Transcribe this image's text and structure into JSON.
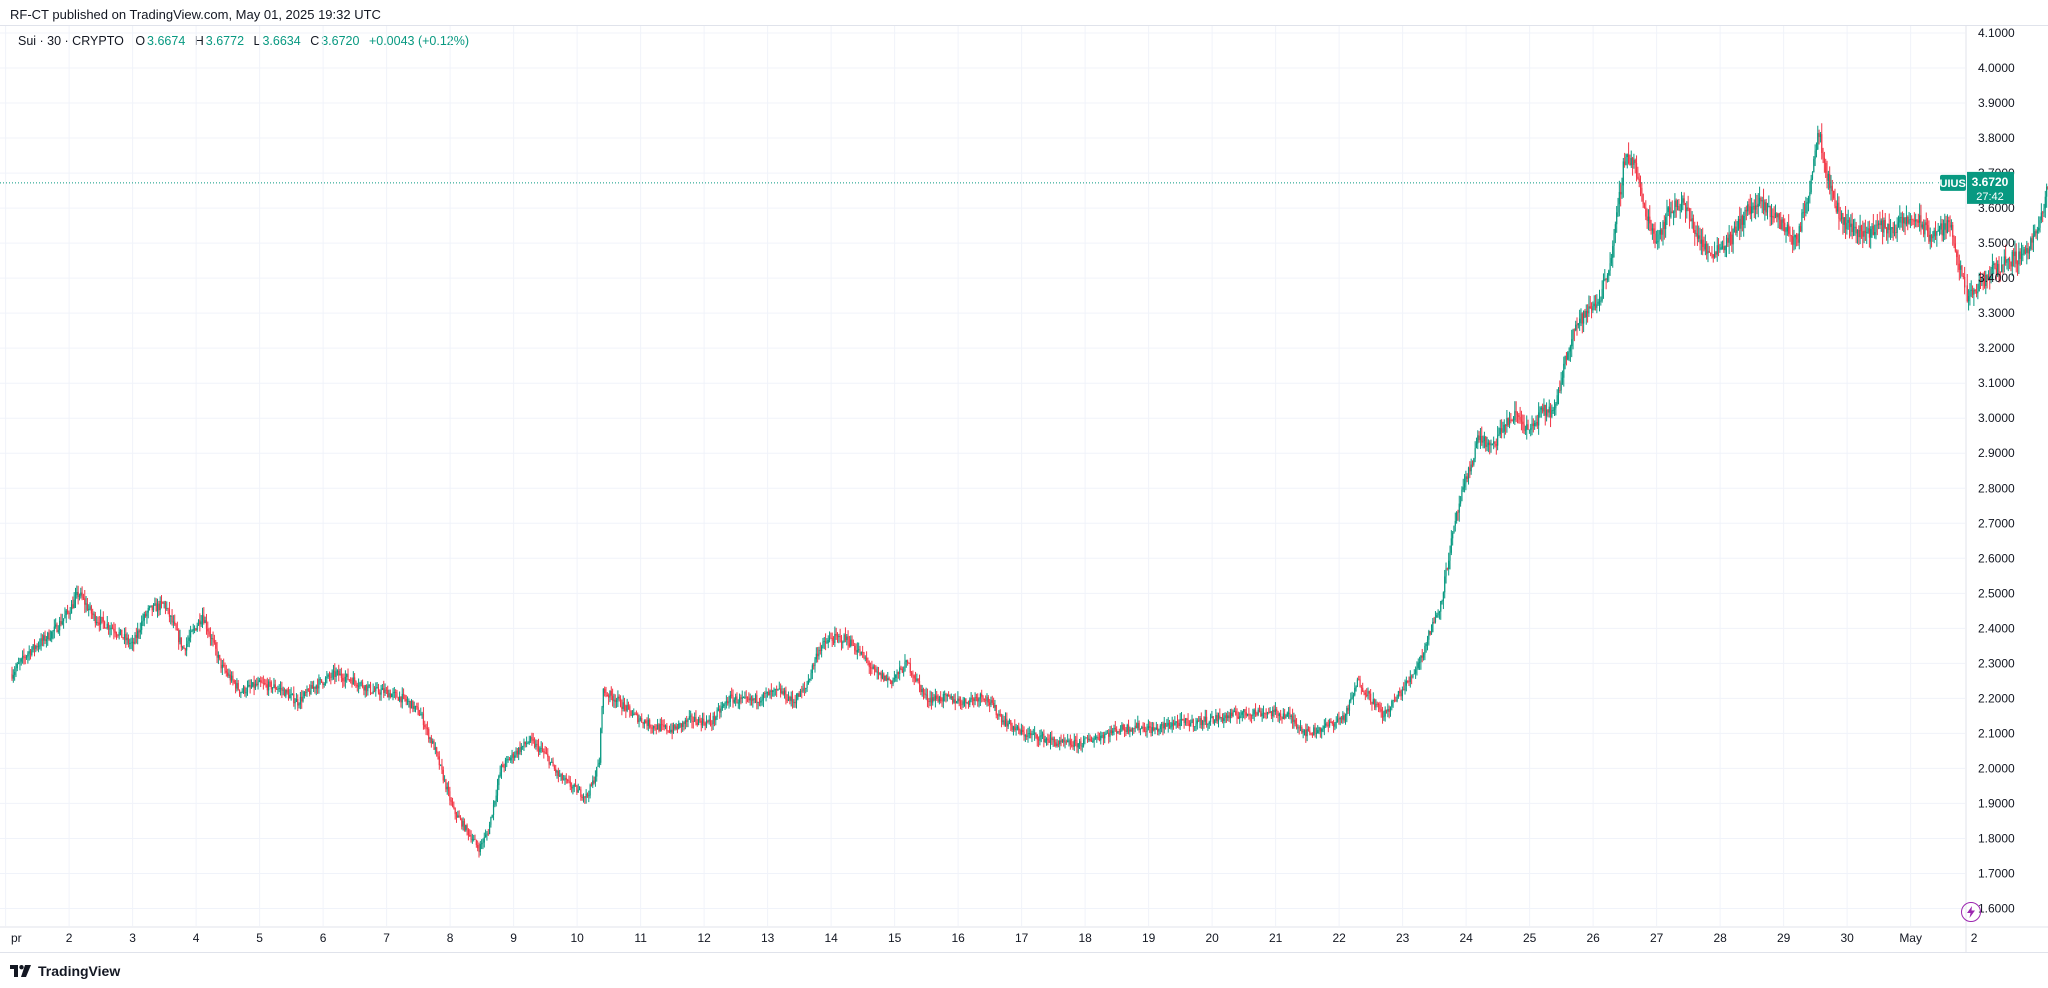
{
  "header": {
    "published": "RF-CT published on TradingView.com, May 01, 2025 19:32 UTC"
  },
  "legend": {
    "symbol": "Sui · 30 · CRYPTO",
    "o_label": "O",
    "o_value": "3.6674",
    "h_label": "H",
    "h_value": "3.6772",
    "l_label": "L",
    "l_value": "3.6634",
    "c_label": "C",
    "c_value": "3.6720",
    "change": "+0.0043 (+0.12%)"
  },
  "footer": {
    "brand": "TradingView"
  },
  "colors": {
    "up": "#089981",
    "down": "#f23645",
    "grid": "#f0f3fa",
    "text": "#131722",
    "badge": "#089981",
    "bolt": "#9c27b0"
  },
  "icons": {
    "logo": "tradingview-logo-icon",
    "lightning": "lightning-icon"
  },
  "chart_data": {
    "type": "candlestick",
    "symbol": "SUIUSD",
    "interval": "30",
    "last_price": "3.6720",
    "countdown": "27:42",
    "ylim": [
      1.55,
      4.12
    ],
    "y_ticks": [
      "1.6000",
      "1.7000",
      "1.8000",
      "1.9000",
      "2.0000",
      "2.1000",
      "2.2000",
      "2.3000",
      "2.4000",
      "2.5000",
      "2.6000",
      "2.7000",
      "2.8000",
      "2.9000",
      "3.0000",
      "3.1000",
      "3.2000",
      "3.3000",
      "3.4000",
      "3.5000",
      "3.6000",
      "3.7000",
      "3.8000",
      "3.9000",
      "4.0000",
      "4.1000"
    ],
    "x_ticks": [
      "pr",
      "2",
      "3",
      "4",
      "5",
      "6",
      "7",
      "8",
      "9",
      "10",
      "11",
      "12",
      "13",
      "14",
      "15",
      "16",
      "17",
      "18",
      "19",
      "20",
      "21",
      "22",
      "23",
      "24",
      "25",
      "26",
      "27",
      "28",
      "29",
      "30",
      "May",
      "2"
    ],
    "grid": true,
    "path_days": [
      0,
      0.25,
      0.45,
      0.65,
      0.9,
      1.05,
      1.3,
      1.6,
      1.9,
      2.05,
      2.15,
      2.4,
      2.7,
      3.0,
      3.3,
      3.6,
      3.9,
      4.2,
      4.5,
      4.8,
      5.1,
      5.4,
      5.7,
      5.85,
      6.0,
      6.15,
      6.3,
      6.45,
      6.55,
      6.65,
      6.8,
      6.95,
      7.1,
      7.25,
      7.35,
      7.5,
      7.7,
      7.9,
      8.15,
      8.4,
      8.6,
      8.8,
      8.95,
      9.05,
      9.15,
      9.25,
      9.3,
      9.5,
      9.8,
      10.1,
      10.4,
      10.7,
      11.0,
      11.3,
      11.6,
      11.9,
      12.1,
      12.3,
      12.5,
      12.7,
      12.9,
      13.15,
      13.4,
      13.6,
      13.85,
      14.1,
      14.4,
      14.7,
      15.0,
      15.3,
      15.6,
      15.9,
      16.2,
      16.5,
      16.8,
      17.1,
      17.4,
      17.7,
      18.0,
      18.3,
      18.6,
      18.9,
      19.2,
      19.5,
      19.8,
      20.1,
      20.4,
      20.7,
      21.0,
      21.2,
      21.4,
      21.6,
      21.8,
      22.0,
      22.2,
      22.35,
      22.5,
      22.65,
      22.8,
      22.95,
      23.1,
      23.3,
      23.5,
      23.7,
      23.9,
      24.1,
      24.3,
      24.45,
      24.6,
      24.8,
      25.0,
      25.2,
      25.4,
      25.55,
      25.7,
      25.9,
      26.1,
      26.3,
      26.5,
      26.7,
      26.9,
      27.1,
      27.3,
      27.5,
      27.7,
      27.9,
      28.1,
      28.3,
      28.45,
      28.6,
      28.8,
      29.0,
      29.2,
      29.4,
      29.6,
      29.8,
      30.0,
      30.2,
      30.4,
      30.55,
      30.65,
      30.8,
      31.0,
      31.2,
      31.4,
      31.6,
      31.8,
      31.95,
      32.1,
      32.2
    ],
    "path_price": [
      2.27,
      2.33,
      2.36,
      2.39,
      2.45,
      2.5,
      2.43,
      2.4,
      2.35,
      2.42,
      2.45,
      2.47,
      2.34,
      2.44,
      2.29,
      2.22,
      2.24,
      2.23,
      2.19,
      2.24,
      2.27,
      2.25,
      2.22,
      2.22,
      2.21,
      2.2,
      2.18,
      2.15,
      2.1,
      2.06,
      1.97,
      1.88,
      1.84,
      1.8,
      1.77,
      1.82,
      2.0,
      2.04,
      2.08,
      2.04,
      1.98,
      1.95,
      1.93,
      1.92,
      1.96,
      2.02,
      2.22,
      2.2,
      2.15,
      2.12,
      2.11,
      2.14,
      2.13,
      2.2,
      2.19,
      2.21,
      2.22,
      2.19,
      2.23,
      2.34,
      2.37,
      2.37,
      2.32,
      2.27,
      2.25,
      2.3,
      2.2,
      2.2,
      2.19,
      2.21,
      2.14,
      2.1,
      2.09,
      2.07,
      2.07,
      2.09,
      2.11,
      2.12,
      2.11,
      2.13,
      2.13,
      2.14,
      2.15,
      2.16,
      2.16,
      2.15,
      2.1,
      2.12,
      2.15,
      2.25,
      2.2,
      2.15,
      2.2,
      2.25,
      2.32,
      2.4,
      2.47,
      2.63,
      2.76,
      2.85,
      2.95,
      2.91,
      2.98,
      3.01,
      2.96,
      3.02,
      3.02,
      3.16,
      3.26,
      3.3,
      3.34,
      3.47,
      3.75,
      3.73,
      3.6,
      3.51,
      3.59,
      3.62,
      3.54,
      3.47,
      3.49,
      3.52,
      3.59,
      3.61,
      3.59,
      3.55,
      3.5,
      3.65,
      3.83,
      3.68,
      3.57,
      3.54,
      3.53,
      3.55,
      3.54,
      3.56,
      3.57,
      3.52,
      3.54,
      3.55,
      3.44,
      3.34,
      3.38,
      3.42,
      3.45,
      3.46,
      3.5,
      3.56,
      3.69,
      3.73,
      3.67
    ],
    "price_line": 3.672
  }
}
